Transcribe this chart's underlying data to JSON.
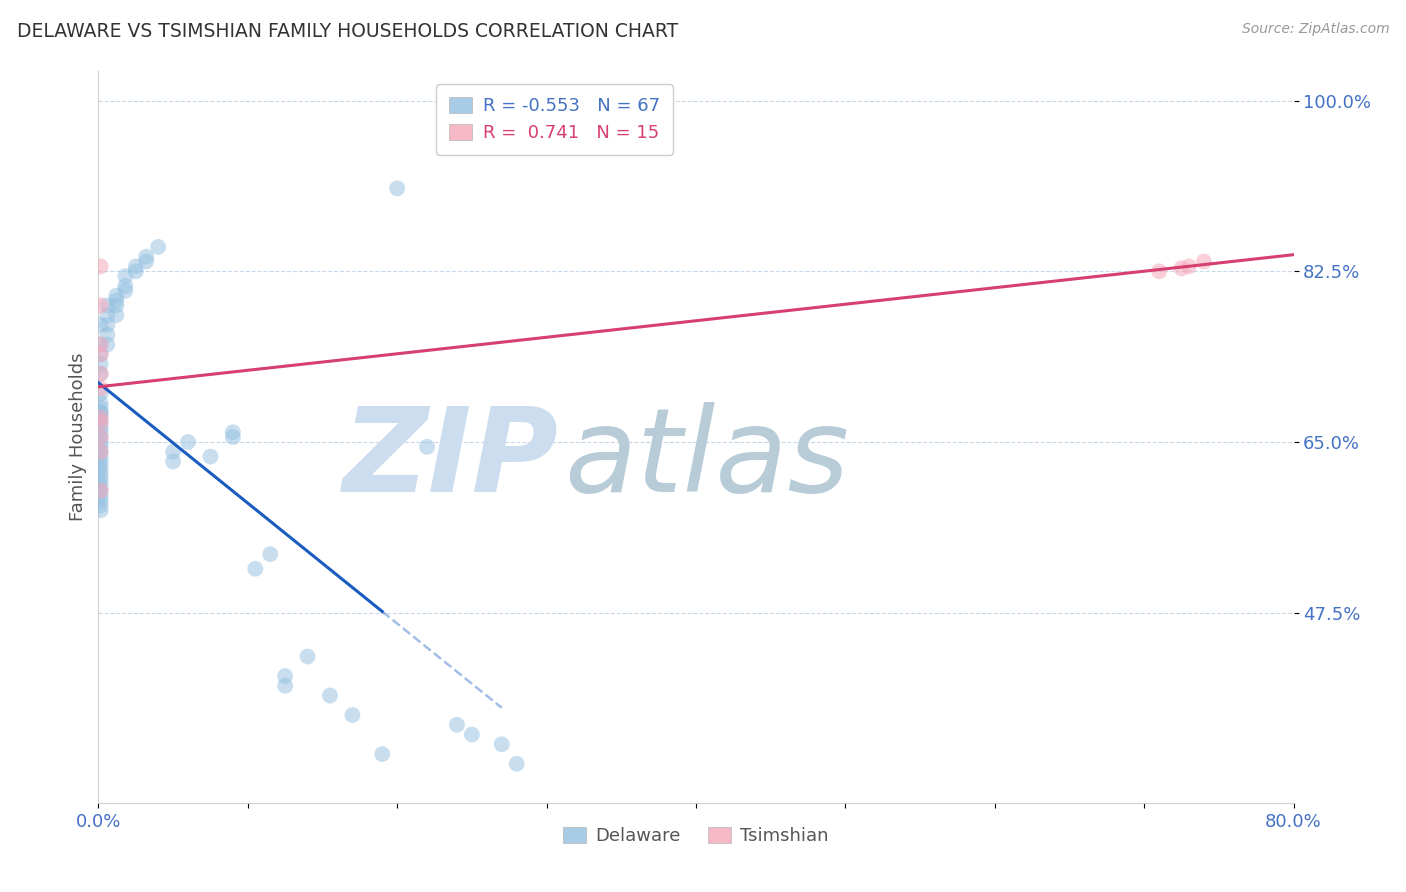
{
  "title": "DELAWARE VS TSIMSHIAN FAMILY HOUSEHOLDS CORRELATION CHART",
  "source": "Source: ZipAtlas.com",
  "ylabel": "Family Households",
  "xlim": [
    0.0,
    80.0
  ],
  "ylim": [
    28.0,
    103.0
  ],
  "yticks": [
    47.5,
    65.0,
    82.5,
    100.0
  ],
  "xtick_positions": [
    0.0,
    10.0,
    20.0,
    30.0,
    40.0,
    50.0,
    60.0,
    70.0,
    80.0
  ],
  "ytick_labels": [
    "47.5%",
    "65.0%",
    "82.5%",
    "100.0%"
  ],
  "delaware_color": "#93bfe0",
  "tsimshian_color": "#f5a8bb",
  "delaware_line_color": "#1a5cbf",
  "tsimshian_line_color": "#d64070",
  "watermark_zip_color": "#cdddf0",
  "watermark_atlas_color": "#b8ccd8",
  "R_delaware": -0.553,
  "N_delaware": 67,
  "R_tsimshian": 0.741,
  "N_tsimshian": 15,
  "delaware_x": [
    0.15,
    0.15,
    0.15,
    0.15,
    0.15,
    0.15,
    0.15,
    0.15,
    0.15,
    0.15,
    0.15,
    0.15,
    0.15,
    0.15,
    0.15,
    0.15,
    0.15,
    0.15,
    0.15,
    0.15,
    0.15,
    0.15,
    0.15,
    0.15,
    0.15,
    0.15,
    0.15,
    0.15,
    0.15,
    0.15,
    0.6,
    0.6,
    0.6,
    0.6,
    0.6,
    1.2,
    1.2,
    1.2,
    1.2,
    1.8,
    1.8,
    1.8,
    2.5,
    2.5,
    3.2,
    3.2,
    4.0,
    5.0,
    5.0,
    6.0,
    7.5,
    9.0,
    9.0,
    10.5,
    11.5,
    12.5,
    12.5,
    14.0,
    15.5,
    17.0,
    19.0,
    20.0,
    22.0,
    24.0,
    25.0,
    27.0,
    28.0
  ],
  "delaware_y": [
    68.0,
    67.5,
    67.0,
    66.5,
    66.0,
    65.5,
    65.0,
    64.5,
    64.0,
    63.5,
    63.0,
    62.5,
    62.0,
    61.5,
    61.0,
    60.5,
    60.0,
    59.5,
    59.0,
    58.5,
    58.0,
    72.0,
    70.0,
    69.0,
    68.5,
    68.0,
    75.0,
    73.0,
    77.0,
    74.0,
    79.0,
    78.0,
    77.0,
    76.0,
    75.0,
    80.0,
    79.5,
    79.0,
    78.0,
    82.0,
    81.0,
    80.5,
    83.0,
    82.5,
    84.0,
    83.5,
    85.0,
    64.0,
    63.0,
    65.0,
    63.5,
    66.0,
    65.5,
    52.0,
    53.5,
    41.0,
    40.0,
    43.0,
    39.0,
    37.0,
    33.0,
    91.0,
    64.5,
    36.0,
    35.0,
    34.0,
    32.0
  ],
  "tsimshian_x": [
    0.15,
    0.15,
    0.15,
    0.15,
    0.15,
    0.15,
    0.15,
    0.15,
    0.15,
    0.15,
    0.15,
    71.0,
    73.0,
    74.0,
    72.5
  ],
  "tsimshian_y": [
    83.0,
    79.0,
    75.0,
    74.0,
    72.0,
    70.5,
    67.5,
    67.0,
    65.5,
    64.0,
    60.0,
    82.5,
    83.0,
    83.5,
    82.8
  ],
  "del_line_x_start": 0.0,
  "del_line_x_solid_end": 19.0,
  "del_line_x_dash_end": 27.0,
  "ts_line_x_start": 0.0,
  "ts_line_x_end": 80.0
}
